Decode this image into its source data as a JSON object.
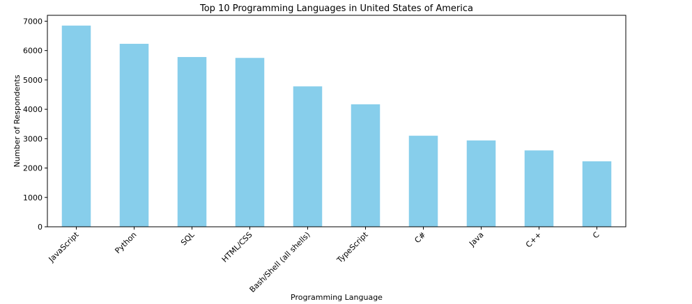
{
  "chart_data": {
    "type": "bar",
    "title": "Top 10 Programming Languages in United States of America",
    "xlabel": "Programming Language",
    "ylabel": "Number of Respondents",
    "categories": [
      "JavaScript",
      "Python",
      "SQL",
      "HTML/CSS",
      "Bash/Shell (all shells)",
      "TypeScript",
      "C#",
      "Java",
      "C++",
      "C"
    ],
    "values": [
      6850,
      6230,
      5780,
      5750,
      4780,
      4170,
      3100,
      2940,
      2600,
      2230
    ],
    "ylim": [
      0,
      7200
    ],
    "yticks": [
      0,
      1000,
      2000,
      3000,
      4000,
      5000,
      6000,
      7000
    ],
    "bar_color": "#87ceeb",
    "grid": false,
    "legend": "none"
  }
}
